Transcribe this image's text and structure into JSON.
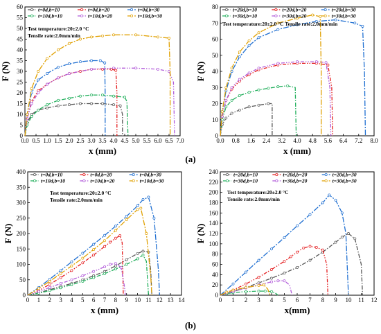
{
  "panel_labels": [
    "(a)",
    "(b)"
  ],
  "chart_data": [
    {
      "id": "a1",
      "type": "line",
      "xlabel": "x (mm)",
      "ylabel": "F (N)",
      "xlim": [
        0,
        7.0
      ],
      "ylim": [
        0,
        60
      ],
      "xticks": [
        0,
        0.5,
        1.0,
        1.5,
        2.0,
        2.5,
        3.0,
        3.5,
        4.0,
        4.5,
        5.0,
        5.5,
        6.0,
        6.5,
        7.0
      ],
      "yticks": [
        0,
        5,
        10,
        15,
        20,
        25,
        30,
        35,
        40,
        45,
        50,
        55,
        60
      ],
      "xtick_labels": [
        "0.0",
        "0.5",
        "1.0",
        "1.5",
        "2.0",
        "2.5",
        "3.0",
        "3.5",
        "4.0",
        "4.5",
        "5.0",
        "5.5",
        "6.0",
        "6.5",
        "7.0"
      ],
      "ytick_labels": [
        "0",
        "5",
        "10",
        "15",
        "20",
        "25",
        "30",
        "35",
        "40",
        "45",
        "50",
        "55",
        "60"
      ],
      "annotations": [
        "Test temperature:20±2.0 °C",
        "Tensile rate:2.0mm/min"
      ],
      "series": [
        {
          "name": "t=0d,b=10",
          "color": "#555555",
          "x": [
            0,
            0.1,
            0.3,
            0.6,
            1.0,
            1.5,
            2.0,
            2.5,
            3.0,
            3.5,
            4.0,
            4.3,
            4.4,
            4.4
          ],
          "y": [
            0,
            6,
            10,
            12,
            13,
            14,
            14.5,
            15,
            15,
            15,
            14.5,
            14,
            10,
            0
          ]
        },
        {
          "name": "t=0d,b=20",
          "color": "#e41a1c",
          "x": [
            0,
            0.1,
            0.3,
            0.6,
            1.0,
            1.5,
            2.0,
            2.5,
            3.0,
            3.5,
            3.9,
            4.1,
            4.15,
            4.15
          ],
          "y": [
            0,
            8,
            16,
            21,
            24,
            27,
            29,
            30,
            31,
            31,
            31,
            30.5,
            20,
            0
          ]
        },
        {
          "name": "t=0d,b=30",
          "color": "#1f6fd1",
          "x": [
            0,
            0.1,
            0.3,
            0.6,
            1.0,
            1.5,
            2.0,
            2.5,
            3.0,
            3.4,
            3.6,
            3.62,
            3.62
          ],
          "y": [
            0,
            10,
            20,
            26,
            29,
            32,
            33.5,
            34.5,
            35,
            35,
            34,
            20,
            0
          ]
        },
        {
          "name": "t=10d,b=10",
          "color": "#1fae5a",
          "x": [
            0,
            0.1,
            0.3,
            0.6,
            1.0,
            1.5,
            2.0,
            2.5,
            3.0,
            3.5,
            4.0,
            4.5,
            4.6,
            4.65
          ],
          "y": [
            0,
            5,
            9,
            12,
            14.5,
            16.5,
            17.5,
            18.5,
            19,
            19,
            18.5,
            18,
            16,
            0
          ]
        },
        {
          "name": "t=10d,b=20",
          "color": "#b15ad9",
          "x": [
            0,
            0.1,
            0.3,
            0.6,
            1.0,
            1.5,
            2.0,
            3.0,
            4.0,
            5.0,
            6.0,
            6.5,
            6.7,
            6.75
          ],
          "y": [
            0,
            8,
            15,
            20,
            24,
            27,
            29,
            31,
            31.5,
            31.5,
            31,
            30,
            25,
            0
          ]
        },
        {
          "name": "t=10d,b=30",
          "color": "#e0a000",
          "x": [
            0,
            0.1,
            0.3,
            0.6,
            1.0,
            1.5,
            2.0,
            2.5,
            3.0,
            3.5,
            4.0,
            5.0,
            6.0,
            6.5,
            6.55,
            6.55
          ],
          "y": [
            0,
            10,
            22,
            30,
            36,
            40,
            43,
            45,
            46,
            46.5,
            47,
            47,
            46,
            45.5,
            30,
            0
          ]
        }
      ]
    },
    {
      "id": "a2",
      "type": "line",
      "xlabel": "x (mm)",
      "ylabel": "F (N)",
      "xlim": [
        0,
        8.0
      ],
      "ylim": [
        0,
        80
      ],
      "xticks": [
        0,
        0.8,
        1.6,
        2.4,
        3.2,
        4.0,
        4.8,
        5.6,
        6.4,
        7.2,
        8.0
      ],
      "yticks": [
        0,
        10,
        20,
        30,
        40,
        50,
        60,
        70,
        80
      ],
      "xtick_labels": [
        "0.0",
        "0.8",
        "1.6",
        "2.4",
        "3.2",
        "4.0",
        "4.8",
        "5.6",
        "6.4",
        "7.2",
        "8.0"
      ],
      "ytick_labels": [
        "0",
        "10",
        "20",
        "30",
        "40",
        "50",
        "60",
        "70",
        "80"
      ],
      "annotations": [
        "Test temperature:20±2.0 °C  Tensile rate:2.0mm/min"
      ],
      "series": [
        {
          "name": "t=20d,b=10",
          "color": "#555555",
          "x": [
            0,
            0.1,
            0.3,
            0.6,
            1.0,
            1.5,
            2.0,
            2.5,
            2.7,
            2.7
          ],
          "y": [
            0,
            7,
            11,
            14,
            16,
            18,
            19,
            20,
            20,
            0
          ]
        },
        {
          "name": "t=20d,b=20",
          "color": "#e41a1c",
          "x": [
            0,
            0.1,
            0.3,
            0.6,
            1.0,
            1.5,
            2.0,
            3.0,
            4.0,
            5.0,
            5.6,
            5.8,
            5.85
          ],
          "y": [
            0,
            12,
            22,
            29,
            34,
            38,
            41,
            44,
            45,
            45,
            44,
            30,
            0
          ]
        },
        {
          "name": "t=20d,b=30",
          "color": "#1f6fd1",
          "x": [
            0,
            0.1,
            0.3,
            0.6,
            1.0,
            1.5,
            2.0,
            3.0,
            4.0,
            5.0,
            6.0,
            7.0,
            7.4,
            7.5,
            7.55
          ],
          "y": [
            0,
            15,
            28,
            40,
            49,
            56,
            61,
            66,
            69,
            71,
            72,
            70,
            68,
            40,
            0
          ]
        },
        {
          "name": "t=30d,b=10",
          "color": "#1fae5a",
          "x": [
            0,
            0.1,
            0.3,
            0.6,
            1.0,
            1.5,
            2.0,
            2.5,
            3.0,
            3.5,
            3.9,
            3.95
          ],
          "y": [
            0,
            10,
            18,
            22,
            25,
            27,
            28.5,
            29.5,
            30.5,
            31,
            30,
            0
          ]
        },
        {
          "name": "t=30d,b=20",
          "color": "#b15ad9",
          "x": [
            0,
            0.1,
            0.3,
            0.6,
            1.0,
            1.5,
            2.0,
            3.0,
            4.0,
            5.0,
            5.5,
            5.7,
            5.75
          ],
          "y": [
            0,
            12,
            22,
            30,
            35,
            39,
            42,
            45,
            46,
            46,
            45.5,
            30,
            0
          ]
        },
        {
          "name": "t=30d,b=30",
          "color": "#e0a000",
          "x": [
            0,
            0.1,
            0.3,
            0.6,
            1.0,
            1.5,
            2.0,
            3.0,
            4.0,
            4.8,
            5.2,
            5.25,
            5.25
          ],
          "y": [
            0,
            15,
            30,
            42,
            52,
            59,
            64,
            70,
            73,
            75,
            74,
            40,
            0
          ]
        }
      ]
    },
    {
      "id": "b1",
      "type": "line",
      "xlabel": "x (mm)",
      "ylabel": "F (N)",
      "xlim": [
        0,
        14
      ],
      "ylim": [
        0,
        400
      ],
      "xticks": [
        0,
        1,
        2,
        3,
        4,
        5,
        6,
        7,
        8,
        9,
        10,
        11,
        12,
        13,
        14
      ],
      "yticks": [
        0,
        50,
        100,
        150,
        200,
        250,
        300,
        350,
        400
      ],
      "xtick_labels": [
        "0",
        "1",
        "2",
        "3",
        "4",
        "5",
        "6",
        "7",
        "8",
        "9",
        "10",
        "11",
        "12",
        "13",
        "14"
      ],
      "ytick_labels": [
        "0",
        "50",
        "100",
        "150",
        "200",
        "250",
        "300",
        "350",
        "400"
      ],
      "annotations": [
        "Test temperature:20±2.0 °C",
        "Tensile rate:2.0mm/min"
      ],
      "series": [
        {
          "name": "t=0d,b=10",
          "color": "#555555",
          "x": [
            0,
            1,
            2,
            3,
            4,
            5,
            6,
            7,
            8,
            9,
            10,
            10.5,
            11,
            11.2,
            11.3
          ],
          "y": [
            0,
            8,
            18,
            28,
            38,
            50,
            63,
            77,
            95,
            115,
            135,
            143,
            140,
            80,
            0
          ]
        },
        {
          "name": "t=0d,b=20",
          "color": "#e41a1c",
          "x": [
            0,
            1,
            2,
            3,
            4,
            5,
            6,
            7,
            7.5,
            8,
            8.4,
            8.6,
            8.7
          ],
          "y": [
            0,
            15,
            35,
            57,
            80,
            105,
            130,
            158,
            172,
            185,
            193,
            170,
            0
          ]
        },
        {
          "name": "t=0d,b=30",
          "color": "#1f6fd1",
          "x": [
            0,
            1,
            2,
            3,
            4,
            5,
            6,
            7,
            8,
            9,
            10,
            10.5,
            11,
            11.5,
            11.9,
            12
          ],
          "y": [
            0,
            25,
            52,
            80,
            108,
            136,
            165,
            194,
            224,
            256,
            290,
            310,
            318,
            250,
            80,
            0
          ]
        },
        {
          "name": "t=10d,b=10",
          "color": "#1fae5a",
          "x": [
            0,
            1,
            2,
            3,
            4,
            5,
            6,
            7,
            8,
            9,
            10,
            10.5,
            10.8,
            11
          ],
          "y": [
            0,
            6,
            15,
            24,
            34,
            45,
            57,
            70,
            85,
            100,
            118,
            130,
            110,
            0
          ]
        },
        {
          "name": "t=10d,b=20",
          "color": "#b15ad9",
          "x": [
            0,
            1,
            2,
            3,
            4,
            5,
            6,
            7,
            7.5,
            8,
            8.5,
            8.8,
            8.9
          ],
          "y": [
            0,
            12,
            25,
            38,
            50,
            63,
            77,
            92,
            100,
            103,
            90,
            30,
            0
          ]
        },
        {
          "name": "t=10d,b=30",
          "color": "#e0a000",
          "x": [
            0,
            1,
            2,
            3,
            4,
            5,
            6,
            7,
            8,
            9,
            10,
            10.3,
            10.8,
            11.2,
            11.3
          ],
          "y": [
            0,
            22,
            45,
            70,
            95,
            120,
            148,
            177,
            210,
            245,
            278,
            282,
            200,
            60,
            0
          ]
        }
      ]
    },
    {
      "id": "b2",
      "type": "line",
      "xlabel": "x(mm)",
      "ylabel": "F (N)",
      "xlim": [
        0,
        12
      ],
      "ylim": [
        0,
        240
      ],
      "xticks": [
        0,
        1,
        2,
        3,
        4,
        5,
        6,
        7,
        8,
        9,
        10,
        11,
        12
      ],
      "yticks": [
        0,
        20,
        40,
        60,
        80,
        100,
        120,
        140,
        160,
        180,
        200,
        220,
        240
      ],
      "xtick_labels": [
        "0",
        "1",
        "2",
        "3",
        "4",
        "5",
        "6",
        "7",
        "8",
        "9",
        "10",
        "11",
        "12"
      ],
      "ytick_labels": [
        "0",
        "20",
        "40",
        "60",
        "80",
        "100",
        "120",
        "140",
        "160",
        "180",
        "200",
        "220",
        "240"
      ],
      "annotations": [
        "Test temperature:20±2.0 °C",
        "Tensile rate:2.0mm/min"
      ],
      "series": [
        {
          "name": "t=20d,b=10",
          "color": "#555555",
          "x": [
            0,
            1,
            2,
            3,
            4,
            5,
            6,
            7,
            8,
            9,
            9.5,
            10,
            10.5,
            11,
            11.1
          ],
          "y": [
            0,
            7,
            15,
            24,
            33,
            43,
            54,
            68,
            84,
            103,
            113,
            120,
            110,
            60,
            0
          ]
        },
        {
          "name": "t=20d,b=20",
          "color": "#e41a1c",
          "x": [
            0,
            1,
            2,
            3,
            4,
            5,
            5.5,
            6,
            6.5,
            7,
            7.5,
            8,
            8.3,
            8.4
          ],
          "y": [
            0,
            10,
            22,
            35,
            50,
            66,
            75,
            84,
            92,
            95,
            93,
            88,
            60,
            0
          ]
        },
        {
          "name": "t=20d,b=30",
          "color": "#1f6fd1",
          "x": [
            0,
            1,
            2,
            3,
            4,
            5,
            6,
            7,
            8,
            8.5,
            9,
            9.5,
            9.8,
            10
          ],
          "y": [
            0,
            22,
            45,
            68,
            90,
            112,
            135,
            157,
            180,
            195,
            185,
            160,
            120,
            0
          ]
        },
        {
          "name": "t=30d,b=10",
          "color": "#1fae5a",
          "x": [
            0,
            0.5,
            1,
            2,
            3,
            3.5,
            4,
            4.3,
            4.5
          ],
          "y": [
            0,
            3,
            5,
            7,
            8,
            8,
            7,
            4,
            0
          ]
        },
        {
          "name": "t=30d,b=20",
          "color": "#b15ad9",
          "x": [
            0,
            1,
            2,
            3,
            4,
            4.5,
            5,
            5.4,
            5.6
          ],
          "y": [
            0,
            7,
            14,
            20,
            26,
            28,
            28,
            20,
            0
          ]
        },
        {
          "name": "t=30d,b=30",
          "color": "#e0a000",
          "x": [
            0,
            0.5,
            1,
            2,
            3,
            3.4,
            3.7,
            3.9
          ],
          "y": [
            0,
            6,
            10,
            15,
            19,
            20,
            12,
            0
          ]
        }
      ]
    }
  ]
}
